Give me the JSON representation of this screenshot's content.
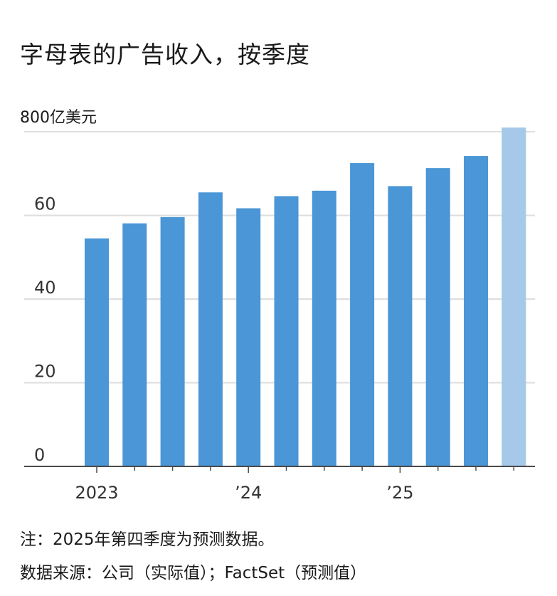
{
  "title": "字母表的广告收入，按季度",
  "notes": {
    "note": "注：2025年第四季度为预测数据。",
    "source": "数据来源：公司（实际值）；FactSet（预测值）"
  },
  "colors": {
    "actual": "#4a96d6",
    "forecast": "#a6c9ea",
    "grid": "#dedede",
    "axis": "#4a4a4a"
  },
  "chart_data": {
    "type": "bar",
    "unit_label": "800亿美元",
    "categories": [
      "2023 Q1",
      "2023 Q2",
      "2023 Q3",
      "2023 Q4",
      "2024 Q1",
      "2024 Q2",
      "2024 Q3",
      "2024 Q4",
      "2025 Q1",
      "2025 Q2",
      "2025 Q3",
      "2025 Q4"
    ],
    "values": [
      54.5,
      58.1,
      59.6,
      65.5,
      61.7,
      64.6,
      65.9,
      72.5,
      67.0,
      71.3,
      74.2,
      81.0
    ],
    "forecast": [
      false,
      false,
      false,
      false,
      false,
      false,
      false,
      false,
      false,
      false,
      false,
      true
    ],
    "ylim": [
      0,
      80
    ],
    "yticks": [
      {
        "value": 0,
        "label": "0"
      },
      {
        "value": 20,
        "label": "20"
      },
      {
        "value": 40,
        "label": "40"
      },
      {
        "value": 60,
        "label": "60"
      }
    ],
    "xticks": [
      {
        "index": 0,
        "label": "2023"
      },
      {
        "index": 4,
        "label": "’24"
      },
      {
        "index": 8,
        "label": "’25"
      }
    ],
    "grid": true,
    "legend": "none"
  }
}
